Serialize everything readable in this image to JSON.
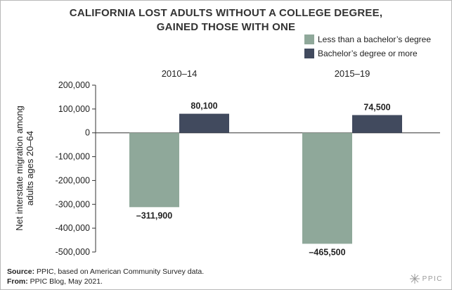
{
  "title_line1": "CALIFORNIA LOST ADULTS WITHOUT A COLLEGE DEGREE,",
  "title_line2": "GAINED THOSE WITH ONE",
  "source_label": "Source:",
  "source_text": " PPIC, based on American Community Survey data.",
  "from_label": "From:",
  "from_text": " PPIC Blog, May 2021.",
  "logo_text": "PPIC",
  "chart_data": {
    "type": "bar",
    "categories": [
      "2010–14",
      "2015–19"
    ],
    "series": [
      {
        "name": "Less than a bachelor’s degree",
        "values": [
          -311900,
          -465500
        ],
        "labels": [
          "–311,900",
          "–465,500"
        ],
        "color": "#8fa89a"
      },
      {
        "name": "Bachelor’s degree or more",
        "values": [
          80100,
          74500
        ],
        "labels": [
          "80,100",
          "74,500"
        ],
        "color": "#414a5e"
      }
    ],
    "ylabel_line1": "Net interstate migration among",
    "ylabel_line2": "adults ages 20–64",
    "ylim": [
      -500000,
      200000
    ],
    "yticks": [
      200000,
      100000,
      0,
      -100000,
      -200000,
      -300000,
      -400000,
      -500000
    ],
    "ytick_labels": [
      "200,000",
      "100,000",
      "0",
      "-100,000",
      "-200,000",
      "-300,000",
      "-400,000",
      "-500,000"
    ],
    "legend_position": "top-right",
    "grid": false
  }
}
